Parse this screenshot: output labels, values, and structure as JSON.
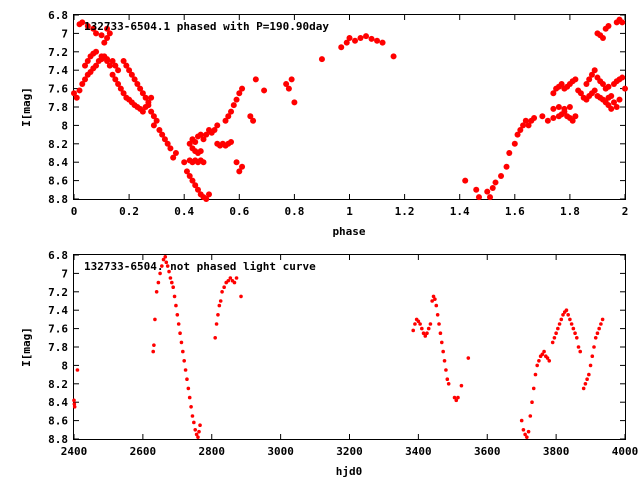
{
  "marker_color": "#ff0000",
  "chart_data": [
    {
      "type": "scatter",
      "title": "132733-6504.1 phased with P=190.90day",
      "xlabel": "phase",
      "ylabel": "I[mag]",
      "xlim": [
        0,
        2
      ],
      "ylim": [
        8.8,
        6.8
      ],
      "y_inverted": true,
      "xticks": [
        "0",
        "0.2",
        "0.4",
        "0.6",
        "0.8",
        "1",
        "1.2",
        "1.4",
        "1.6",
        "1.8",
        "2"
      ],
      "yticks": [
        "6.8",
        "7",
        "7.2",
        "7.4",
        "7.6",
        "7.8",
        "8",
        "8.2",
        "8.4",
        "8.6",
        "8.8"
      ],
      "marker": "filled-circle",
      "points": [
        [
          0.0,
          7.65
        ],
        [
          0.01,
          7.7
        ],
        [
          0.02,
          7.62
        ],
        [
          0.03,
          7.55
        ],
        [
          0.04,
          7.5
        ],
        [
          0.05,
          7.45
        ],
        [
          0.06,
          7.42
        ],
        [
          0.07,
          7.38
        ],
        [
          0.08,
          7.35
        ],
        [
          0.09,
          7.3
        ],
        [
          0.1,
          7.28
        ],
        [
          0.11,
          7.25
        ],
        [
          0.12,
          7.3
        ],
        [
          0.13,
          7.35
        ],
        [
          0.02,
          6.9
        ],
        [
          0.03,
          6.88
        ],
        [
          0.05,
          6.92
        ],
        [
          0.07,
          6.95
        ],
        [
          0.08,
          7.0
        ],
        [
          0.1,
          7.02
        ],
        [
          0.12,
          7.05
        ],
        [
          0.11,
          7.1
        ],
        [
          0.13,
          7.0
        ],
        [
          0.12,
          6.95
        ],
        [
          0.04,
          7.35
        ],
        [
          0.05,
          7.3
        ],
        [
          0.06,
          7.25
        ],
        [
          0.07,
          7.22
        ],
        [
          0.08,
          7.2
        ],
        [
          0.1,
          7.25
        ],
        [
          0.12,
          7.28
        ],
        [
          0.14,
          7.3
        ],
        [
          0.15,
          7.35
        ],
        [
          0.16,
          7.4
        ],
        [
          0.14,
          7.45
        ],
        [
          0.15,
          7.5
        ],
        [
          0.16,
          7.55
        ],
        [
          0.17,
          7.6
        ],
        [
          0.18,
          7.65
        ],
        [
          0.19,
          7.7
        ],
        [
          0.2,
          7.72
        ],
        [
          0.21,
          7.75
        ],
        [
          0.22,
          7.78
        ],
        [
          0.23,
          7.8
        ],
        [
          0.24,
          7.82
        ],
        [
          0.25,
          7.85
        ],
        [
          0.26,
          7.8
        ],
        [
          0.27,
          7.75
        ],
        [
          0.28,
          7.7
        ],
        [
          0.18,
          7.3
        ],
        [
          0.19,
          7.35
        ],
        [
          0.2,
          7.4
        ],
        [
          0.21,
          7.45
        ],
        [
          0.22,
          7.5
        ],
        [
          0.23,
          7.55
        ],
        [
          0.24,
          7.6
        ],
        [
          0.25,
          7.65
        ],
        [
          0.26,
          7.7
        ],
        [
          0.27,
          7.78
        ],
        [
          0.28,
          7.85
        ],
        [
          0.29,
          7.9
        ],
        [
          0.3,
          7.95
        ],
        [
          0.29,
          8.0
        ],
        [
          0.31,
          8.05
        ],
        [
          0.32,
          8.1
        ],
        [
          0.33,
          8.15
        ],
        [
          0.34,
          8.2
        ],
        [
          0.35,
          8.25
        ],
        [
          0.36,
          8.35
        ],
        [
          0.37,
          8.3
        ],
        [
          0.4,
          8.4
        ],
        [
          0.41,
          8.5
        ],
        [
          0.42,
          8.55
        ],
        [
          0.43,
          8.6
        ],
        [
          0.44,
          8.65
        ],
        [
          0.45,
          8.7
        ],
        [
          0.46,
          8.75
        ],
        [
          0.47,
          8.78
        ],
        [
          0.48,
          8.8
        ],
        [
          0.49,
          8.75
        ],
        [
          0.42,
          8.2
        ],
        [
          0.43,
          8.15
        ],
        [
          0.44,
          8.18
        ],
        [
          0.45,
          8.12
        ],
        [
          0.46,
          8.1
        ],
        [
          0.47,
          8.15
        ],
        [
          0.48,
          8.1
        ],
        [
          0.49,
          8.05
        ],
        [
          0.5,
          8.08
        ],
        [
          0.51,
          8.05
        ],
        [
          0.52,
          8.0
        ],
        [
          0.42,
          8.38
        ],
        [
          0.43,
          8.4
        ],
        [
          0.44,
          8.38
        ],
        [
          0.45,
          8.4
        ],
        [
          0.46,
          8.38
        ],
        [
          0.47,
          8.4
        ],
        [
          0.43,
          8.25
        ],
        [
          0.44,
          8.28
        ],
        [
          0.45,
          8.3
        ],
        [
          0.46,
          8.28
        ],
        [
          0.52,
          8.2
        ],
        [
          0.53,
          8.22
        ],
        [
          0.54,
          8.2
        ],
        [
          0.55,
          8.22
        ],
        [
          0.56,
          8.2
        ],
        [
          0.57,
          8.18
        ],
        [
          0.55,
          7.95
        ],
        [
          0.56,
          7.9
        ],
        [
          0.57,
          7.85
        ],
        [
          0.58,
          7.78
        ],
        [
          0.59,
          7.72
        ],
        [
          0.6,
          7.65
        ],
        [
          0.61,
          7.6
        ],
        [
          0.6,
          8.5
        ],
        [
          0.61,
          8.45
        ],
        [
          0.59,
          8.4
        ],
        [
          0.64,
          7.9
        ],
        [
          0.65,
          7.95
        ],
        [
          0.66,
          7.5
        ],
        [
          0.69,
          7.62
        ],
        [
          0.77,
          7.55
        ],
        [
          0.78,
          7.6
        ],
        [
          0.79,
          7.5
        ],
        [
          0.8,
          7.75
        ],
        [
          0.9,
          7.28
        ],
        [
          0.97,
          7.15
        ],
        [
          0.99,
          7.1
        ],
        [
          1.0,
          7.05
        ],
        [
          1.02,
          7.08
        ],
        [
          1.04,
          7.05
        ],
        [
          1.06,
          7.03
        ],
        [
          1.08,
          7.06
        ],
        [
          1.1,
          7.08
        ],
        [
          1.12,
          7.1
        ],
        [
          1.16,
          7.25
        ],
        [
          1.42,
          8.6
        ],
        [
          1.46,
          8.7
        ],
        [
          1.47,
          8.78
        ],
        [
          1.5,
          8.72
        ],
        [
          1.51,
          8.78
        ],
        [
          1.52,
          8.68
        ],
        [
          1.53,
          8.62
        ],
        [
          1.55,
          8.55
        ],
        [
          1.57,
          8.45
        ],
        [
          1.58,
          8.3
        ],
        [
          1.6,
          8.2
        ],
        [
          1.61,
          8.1
        ],
        [
          1.62,
          8.05
        ],
        [
          1.63,
          8.0
        ],
        [
          1.64,
          7.95
        ],
        [
          1.65,
          8.0
        ],
        [
          1.66,
          7.95
        ],
        [
          1.67,
          7.92
        ],
        [
          1.7,
          7.9
        ],
        [
          1.72,
          7.95
        ],
        [
          1.74,
          7.92
        ],
        [
          1.76,
          7.9
        ],
        [
          1.77,
          7.88
        ],
        [
          1.78,
          7.85
        ],
        [
          1.79,
          7.9
        ],
        [
          1.8,
          7.92
        ],
        [
          1.81,
          7.95
        ],
        [
          1.82,
          7.9
        ],
        [
          1.74,
          7.65
        ],
        [
          1.75,
          7.6
        ],
        [
          1.76,
          7.58
        ],
        [
          1.77,
          7.55
        ],
        [
          1.78,
          7.6
        ],
        [
          1.79,
          7.58
        ],
        [
          1.8,
          7.55
        ],
        [
          1.81,
          7.52
        ],
        [
          1.82,
          7.5
        ],
        [
          1.74,
          7.82
        ],
        [
          1.76,
          7.8
        ],
        [
          1.78,
          7.82
        ],
        [
          1.8,
          7.8
        ],
        [
          1.83,
          7.62
        ],
        [
          1.84,
          7.65
        ],
        [
          1.85,
          7.7
        ],
        [
          1.86,
          7.72
        ],
        [
          1.87,
          7.68
        ],
        [
          1.88,
          7.65
        ],
        [
          1.89,
          7.62
        ],
        [
          1.9,
          7.68
        ],
        [
          1.91,
          7.7
        ],
        [
          1.92,
          7.72
        ],
        [
          1.93,
          7.75
        ],
        [
          1.94,
          7.7
        ],
        [
          1.95,
          7.68
        ],
        [
          1.86,
          7.55
        ],
        [
          1.87,
          7.5
        ],
        [
          1.88,
          7.45
        ],
        [
          1.89,
          7.4
        ],
        [
          1.9,
          7.48
        ],
        [
          1.91,
          7.52
        ],
        [
          1.92,
          7.55
        ],
        [
          1.93,
          7.6
        ],
        [
          1.94,
          7.58
        ],
        [
          1.96,
          7.55
        ],
        [
          1.97,
          7.52
        ],
        [
          1.98,
          7.5
        ],
        [
          1.99,
          7.48
        ],
        [
          2.0,
          7.6
        ],
        [
          1.9,
          7.0
        ],
        [
          1.91,
          7.02
        ],
        [
          1.92,
          7.05
        ],
        [
          1.93,
          6.95
        ],
        [
          1.94,
          6.92
        ],
        [
          1.97,
          6.88
        ],
        [
          1.98,
          6.85
        ],
        [
          1.99,
          6.88
        ],
        [
          1.94,
          7.78
        ],
        [
          1.95,
          7.82
        ],
        [
          1.96,
          7.75
        ],
        [
          1.97,
          7.8
        ],
        [
          1.98,
          7.72
        ]
      ]
    },
    {
      "type": "scatter",
      "title": "132733-6504. not phased light curve",
      "xlabel": "hjd0",
      "ylabel": "I[mag]",
      "xlim": [
        2400,
        4000
      ],
      "ylim": [
        8.8,
        6.8
      ],
      "y_inverted": true,
      "xticks": [
        "2400",
        "2600",
        "2800",
        "3000",
        "3200",
        "3400",
        "3600",
        "3800",
        "4000"
      ],
      "yticks": [
        "6.8",
        "7",
        "7.2",
        "7.4",
        "7.6",
        "7.8",
        "8",
        "8.2",
        "8.4",
        "8.6",
        "8.8"
      ],
      "marker": "filled-circle",
      "points": [
        [
          2400,
          8.38
        ],
        [
          2401,
          8.42
        ],
        [
          2402,
          8.45
        ],
        [
          2410,
          8.05
        ],
        [
          2630,
          7.85
        ],
        [
          2632,
          7.78
        ],
        [
          2635,
          7.5
        ],
        [
          2640,
          7.2
        ],
        [
          2645,
          7.1
        ],
        [
          2650,
          7.0
        ],
        [
          2655,
          6.92
        ],
        [
          2660,
          6.85
        ],
        [
          2665,
          6.82
        ],
        [
          2668,
          6.88
        ],
        [
          2672,
          6.92
        ],
        [
          2676,
          6.98
        ],
        [
          2680,
          7.05
        ],
        [
          2684,
          7.1
        ],
        [
          2688,
          7.15
        ],
        [
          2692,
          7.25
        ],
        [
          2696,
          7.35
        ],
        [
          2700,
          7.45
        ],
        [
          2704,
          7.55
        ],
        [
          2708,
          7.65
        ],
        [
          2712,
          7.75
        ],
        [
          2716,
          7.85
        ],
        [
          2720,
          7.95
        ],
        [
          2724,
          8.05
        ],
        [
          2728,
          8.15
        ],
        [
          2732,
          8.25
        ],
        [
          2736,
          8.35
        ],
        [
          2740,
          8.45
        ],
        [
          2744,
          8.55
        ],
        [
          2748,
          8.62
        ],
        [
          2752,
          8.7
        ],
        [
          2756,
          8.75
        ],
        [
          2760,
          8.78
        ],
        [
          2763,
          8.72
        ],
        [
          2766,
          8.65
        ],
        [
          2810,
          7.7
        ],
        [
          2814,
          7.55
        ],
        [
          2818,
          7.45
        ],
        [
          2822,
          7.35
        ],
        [
          2826,
          7.3
        ],
        [
          2830,
          7.2
        ],
        [
          2836,
          7.15
        ],
        [
          2842,
          7.1
        ],
        [
          2848,
          7.08
        ],
        [
          2854,
          7.05
        ],
        [
          2860,
          7.08
        ],
        [
          2866,
          7.1
        ],
        [
          2872,
          7.05
        ],
        [
          2885,
          7.25
        ],
        [
          3385,
          7.62
        ],
        [
          3390,
          7.55
        ],
        [
          3395,
          7.5
        ],
        [
          3400,
          7.52
        ],
        [
          3405,
          7.55
        ],
        [
          3410,
          7.6
        ],
        [
          3415,
          7.65
        ],
        [
          3420,
          7.68
        ],
        [
          3425,
          7.65
        ],
        [
          3430,
          7.6
        ],
        [
          3435,
          7.55
        ],
        [
          3440,
          7.3
        ],
        [
          3444,
          7.25
        ],
        [
          3448,
          7.28
        ],
        [
          3452,
          7.35
        ],
        [
          3456,
          7.45
        ],
        [
          3460,
          7.55
        ],
        [
          3464,
          7.65
        ],
        [
          3468,
          7.75
        ],
        [
          3472,
          7.85
        ],
        [
          3476,
          7.95
        ],
        [
          3480,
          8.05
        ],
        [
          3484,
          8.15
        ],
        [
          3488,
          8.2
        ],
        [
          3505,
          8.35
        ],
        [
          3510,
          8.38
        ],
        [
          3515,
          8.35
        ],
        [
          3525,
          8.22
        ],
        [
          3545,
          7.92
        ],
        [
          3700,
          8.6
        ],
        [
          3705,
          8.7
        ],
        [
          3710,
          8.75
        ],
        [
          3715,
          8.78
        ],
        [
          3720,
          8.72
        ],
        [
          3725,
          8.55
        ],
        [
          3730,
          8.4
        ],
        [
          3735,
          8.25
        ],
        [
          3740,
          8.1
        ],
        [
          3745,
          8.0
        ],
        [
          3750,
          7.95
        ],
        [
          3755,
          7.9
        ],
        [
          3760,
          7.88
        ],
        [
          3765,
          7.85
        ],
        [
          3770,
          7.9
        ],
        [
          3775,
          7.92
        ],
        [
          3780,
          7.95
        ],
        [
          3790,
          7.75
        ],
        [
          3795,
          7.7
        ],
        [
          3800,
          7.65
        ],
        [
          3805,
          7.6
        ],
        [
          3810,
          7.55
        ],
        [
          3815,
          7.5
        ],
        [
          3820,
          7.45
        ],
        [
          3825,
          7.42
        ],
        [
          3830,
          7.4
        ],
        [
          3835,
          7.45
        ],
        [
          3840,
          7.5
        ],
        [
          3845,
          7.55
        ],
        [
          3850,
          7.6
        ],
        [
          3855,
          7.65
        ],
        [
          3860,
          7.7
        ],
        [
          3865,
          7.8
        ],
        [
          3870,
          7.85
        ],
        [
          3880,
          8.25
        ],
        [
          3885,
          8.2
        ],
        [
          3890,
          8.15
        ],
        [
          3895,
          8.1
        ],
        [
          3900,
          8.0
        ],
        [
          3905,
          7.9
        ],
        [
          3910,
          7.8
        ],
        [
          3915,
          7.7
        ],
        [
          3920,
          7.65
        ],
        [
          3925,
          7.6
        ],
        [
          3930,
          7.55
        ],
        [
          3935,
          7.5
        ]
      ]
    }
  ]
}
